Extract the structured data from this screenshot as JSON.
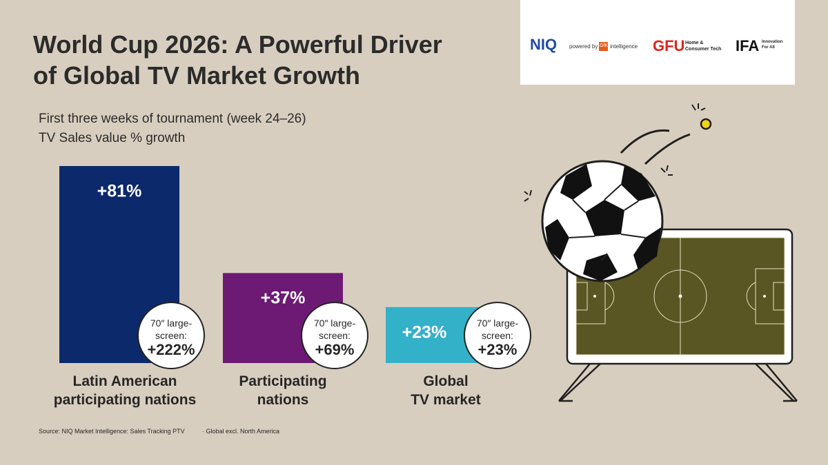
{
  "chart_data": {
    "type": "bar",
    "title": "World Cup 2026: A Powerful Driver\nof Global TV Market Growth",
    "subtitle": "First three weeks of tournament (week 24–26)\nTV Sales value % growth",
    "categories": [
      "Latin American\nparticipating nations",
      "Participating\nnations",
      "Global\nTV market"
    ],
    "values": [
      81,
      37,
      23
    ],
    "value_labels": [
      "+81%",
      "+37%",
      "+23%"
    ],
    "colors": [
      "#0c2a6b",
      "#6c1a74",
      "#33b1c9"
    ],
    "callouts": {
      "label": "70″ large-\nscreen:",
      "values": [
        222,
        69,
        23
      ],
      "value_labels": [
        "+222%",
        "+69%",
        "+23%"
      ]
    },
    "source": "Source: NIQ Market Intelligence: Sales Tracking PTV",
    "footnote": "· Global excl. North America"
  },
  "logos": {
    "niq": "NIQ",
    "powered_by": "powered by",
    "gfk": "GfK",
    "intelligence": "intelligence",
    "gfu": "GFU",
    "gfu_tagline": "Home &\nConsumer Tech",
    "ifa": "IFA",
    "ifa_tagline": "Innovation\nFor All"
  }
}
